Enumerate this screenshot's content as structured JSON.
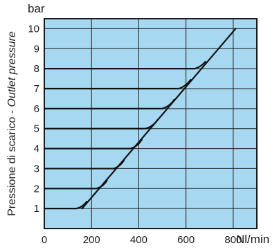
{
  "chart_data": {
    "type": "line",
    "ylabel_main": "Pressione di scarico - ",
    "ylabel_italic": "Outlet pressure",
    "y_unit": "bar",
    "x_unit": "Nl/min",
    "xlim": [
      0,
      900
    ],
    "ylim": [
      0,
      10.5
    ],
    "x_ticks": [
      0,
      200,
      400,
      600,
      800
    ],
    "y_ticks": [
      1,
      2,
      3,
      4,
      5,
      6,
      7,
      8,
      9,
      10
    ],
    "grid": true,
    "background_color": "#a6d8f2",
    "line_color": "#111111",
    "envelope": [
      [
        160,
        1.0
      ],
      [
        810,
        10.0
      ]
    ],
    "series": [
      {
        "pressure": 1,
        "points": [
          [
            0,
            1
          ],
          [
            135,
            1
          ],
          [
            160,
            1.05
          ],
          [
            180,
            1.35
          ]
        ]
      },
      {
        "pressure": 2,
        "points": [
          [
            0,
            2
          ],
          [
            220,
            2
          ],
          [
            248,
            2.08
          ],
          [
            265,
            2.4
          ]
        ]
      },
      {
        "pressure": 3,
        "points": [
          [
            0,
            3
          ],
          [
            295,
            3
          ],
          [
            320,
            3.1
          ],
          [
            337,
            3.4
          ]
        ]
      },
      {
        "pressure": 4,
        "points": [
          [
            0,
            4
          ],
          [
            365,
            4
          ],
          [
            395,
            4.1
          ],
          [
            413,
            4.45
          ]
        ]
      },
      {
        "pressure": 5,
        "points": [
          [
            0,
            5
          ],
          [
            430,
            5
          ],
          [
            462,
            5.12
          ],
          [
            480,
            5.45
          ]
        ]
      },
      {
        "pressure": 6,
        "points": [
          [
            0,
            6
          ],
          [
            500,
            6
          ],
          [
            532,
            6.12
          ],
          [
            550,
            6.45
          ]
        ]
      },
      {
        "pressure": 7,
        "points": [
          [
            0,
            7
          ],
          [
            570,
            7
          ],
          [
            600,
            7.12
          ],
          [
            620,
            7.45
          ]
        ]
      },
      {
        "pressure": 8,
        "points": [
          [
            0,
            8
          ],
          [
            638,
            8
          ],
          [
            665,
            8.1
          ],
          [
            682,
            8.35
          ]
        ]
      }
    ]
  }
}
